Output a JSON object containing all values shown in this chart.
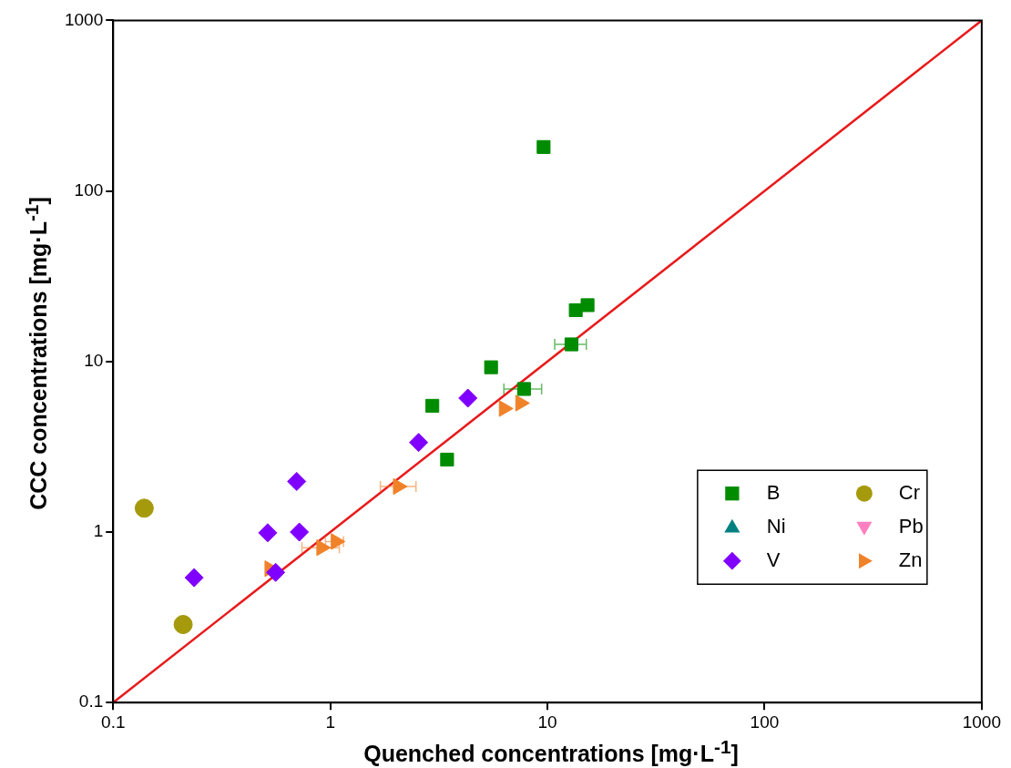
{
  "chart_data": {
    "type": "scatter",
    "xlabel": "Quenched concentrations [mg·L$^{-1}$]",
    "ylabel": "CCC concentrations [mg·L$^{-1}$]",
    "log": "xy",
    "grid": false,
    "legend": "bottom right",
    "xlim": [
      0.1,
      1000
    ],
    "ylim": [
      0.1,
      1000
    ],
    "xticks": [
      0.1,
      1,
      10,
      100,
      1000
    ],
    "yticks": [
      0.1,
      1,
      10,
      100,
      1000
    ],
    "series": [
      {
        "name": "B",
        "color": "#008c00",
        "marker": "square",
        "x": [
          9.6,
          13.5,
          15.3,
          12.9,
          5.5,
          7.8,
          2.95,
          3.45
        ],
        "values": [
          181,
          20,
          21.4,
          12.6,
          9.25,
          6.9,
          5.5,
          2.66
        ],
        "xerrors": [
          null,
          null,
          null,
          [
            10.8,
            15.1
          ],
          null,
          [
            6.3,
            9.4
          ],
          null,
          null
        ]
      },
      {
        "name": "Ni",
        "color": "#008080",
        "marker": "triangle"
      },
      {
        "name": "V",
        "color": "#8000ff",
        "marker": "diamond",
        "x": [
          4.3,
          2.55,
          0.7,
          0.515,
          0.72,
          0.236,
          0.56
        ],
        "values": [
          6.1,
          3.35,
          1.98,
          0.99,
          1.0,
          0.54,
          0.58
        ]
      },
      {
        "name": "Cr",
        "color": "#a59a0c",
        "marker": "circle",
        "x": [
          0.139,
          0.21
        ],
        "values": [
          1.38,
          0.287
        ]
      },
      {
        "name": "Pb",
        "color": "#ff80c0",
        "marker": "triangle-down"
      },
      {
        "name": "Zn",
        "color": "#f0822a",
        "marker": "triangle-right",
        "x": [
          2.05,
          0.525,
          0.91,
          1.06,
          6.3,
          7.5
        ],
        "values": [
          1.85,
          0.61,
          0.81,
          0.88,
          5.3,
          5.7
        ],
        "xerrors": [
          [
            1.7,
            2.48
          ],
          null,
          [
            0.74,
            1.1
          ],
          [
            0.95,
            1.15
          ],
          null,
          null
        ]
      },
      {
        "type": "line",
        "color": "#e8191b",
        "marker": "none",
        "x": [
          0.1,
          1000
        ],
        "values": [
          0.1,
          1000
        ]
      }
    ]
  }
}
